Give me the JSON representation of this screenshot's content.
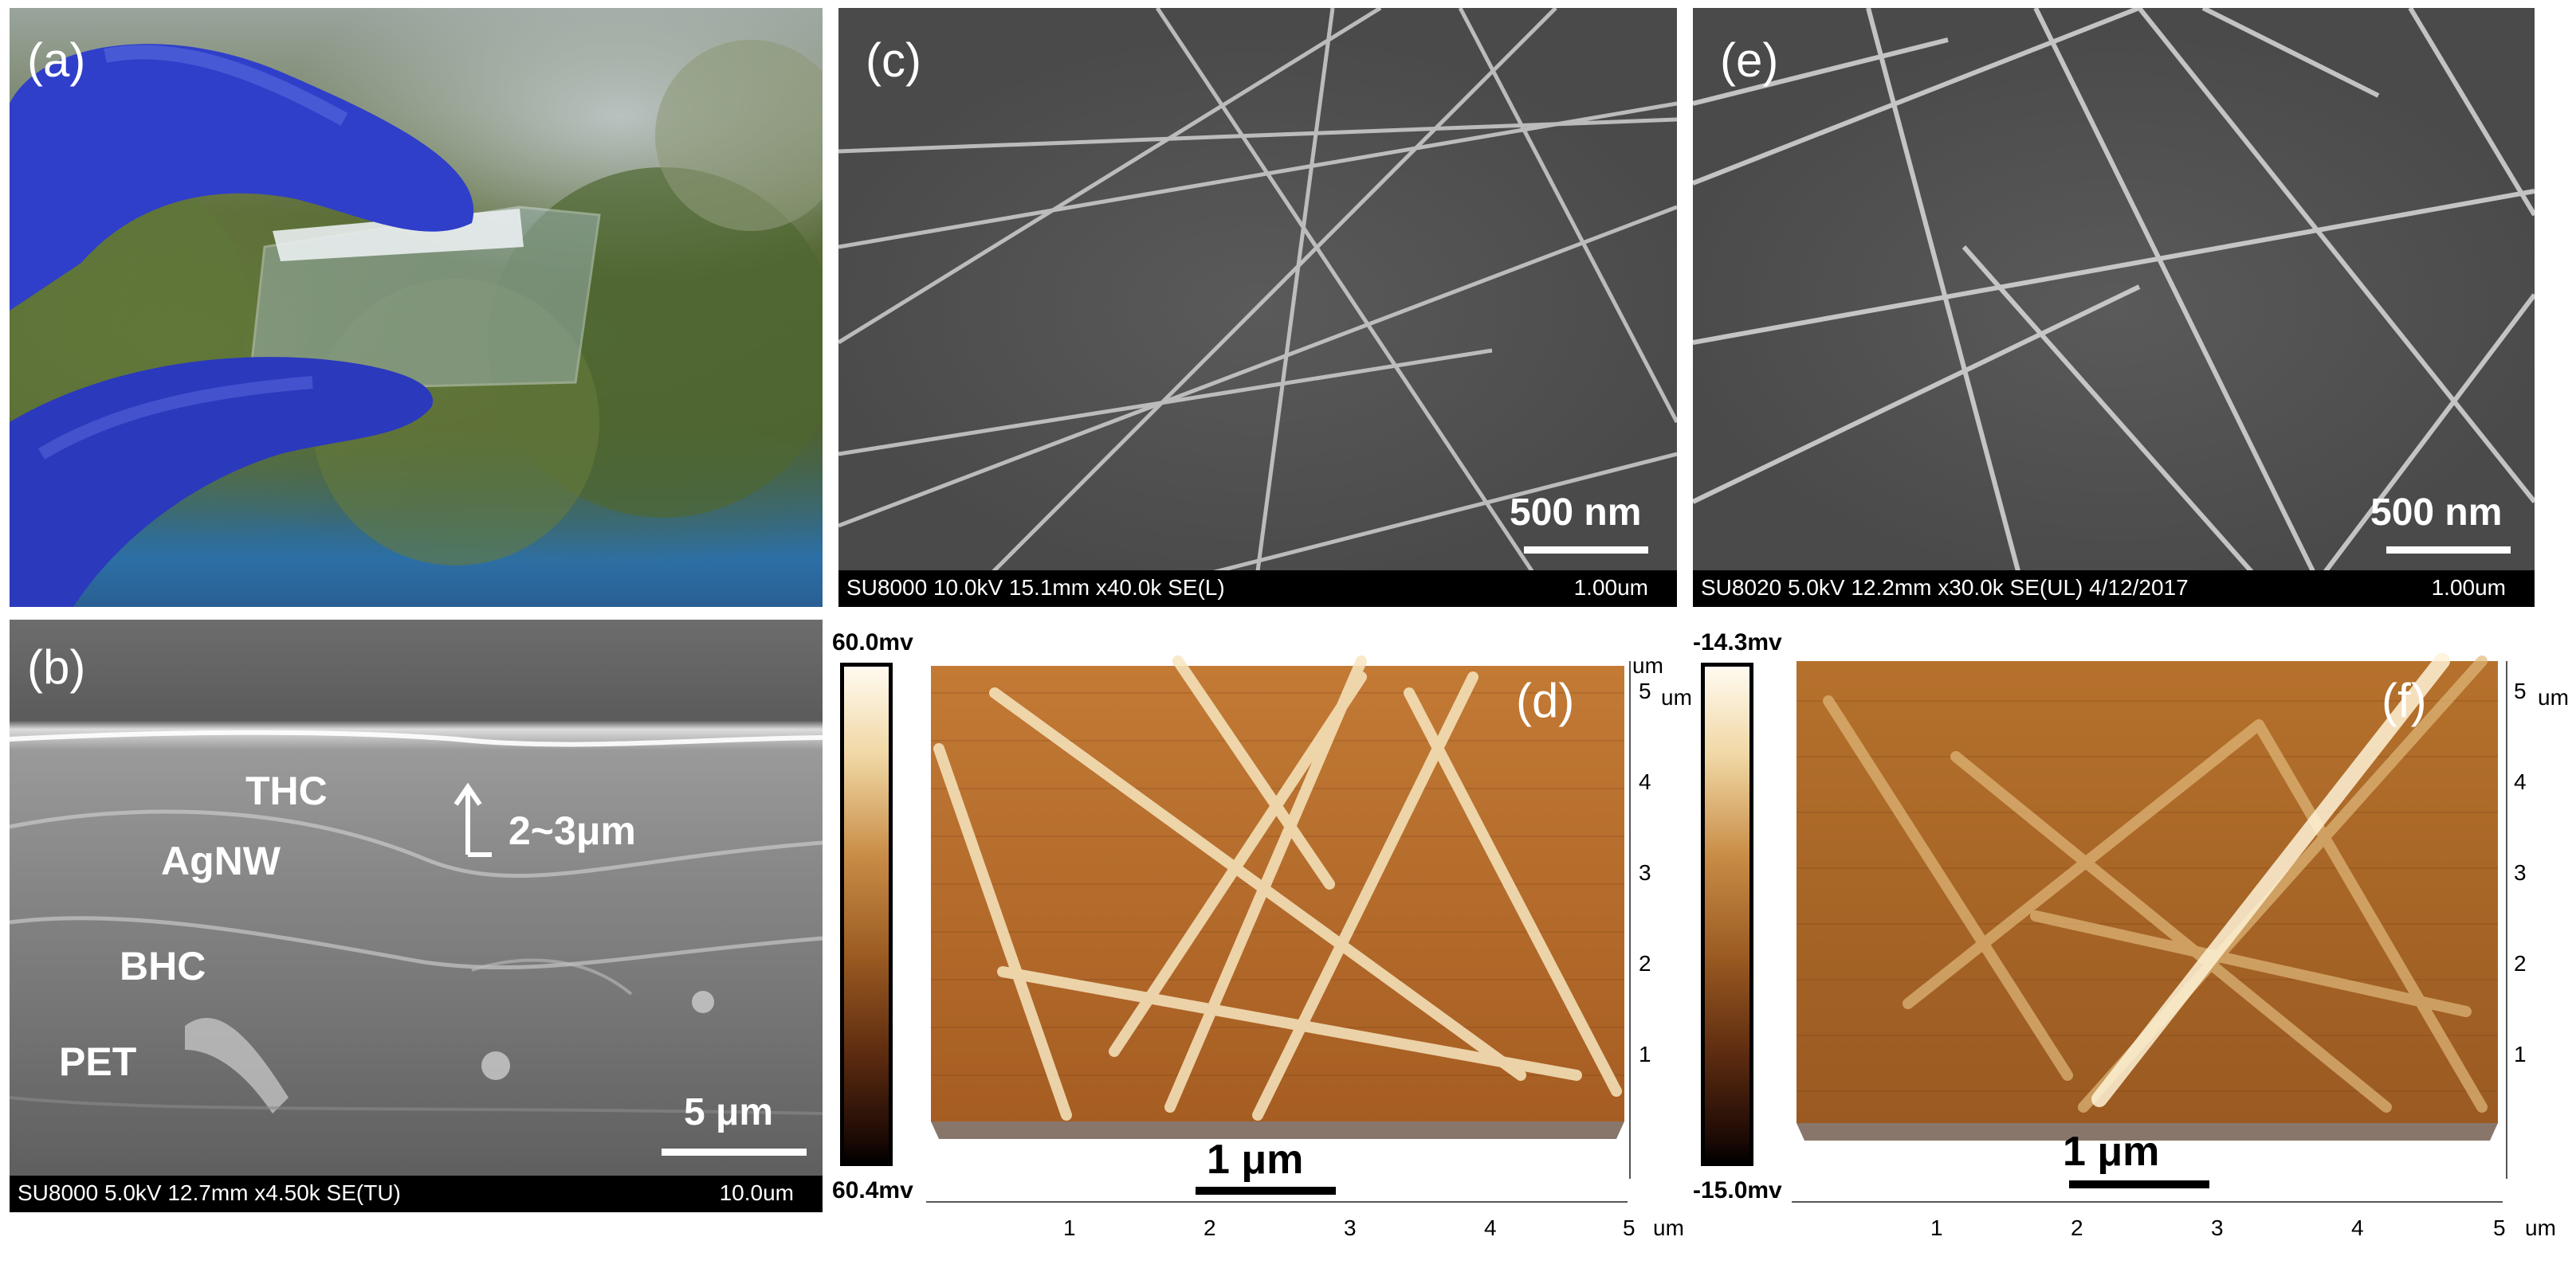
{
  "panels": {
    "a": {
      "label": "(a)"
    },
    "b": {
      "label": "(b)",
      "layers": [
        "THC",
        "AgNW",
        "BHC",
        "PET"
      ],
      "thickness": "2~3μm",
      "scale": "5 μm",
      "info": "SU8000 5.0kV 12.7mm x4.50k SE(TU)",
      "info_scale": "10.0um"
    },
    "c": {
      "label": "(c)",
      "scale": "500 nm",
      "info": "SU8000 10.0kV 15.1mm x40.0k SE(L)",
      "info_scale": "1.00um"
    },
    "e": {
      "label": "(e)",
      "scale": "500 nm",
      "info": "SU8020 5.0kV 12.2mm x30.0k SE(UL) 4/12/2017",
      "info_scale": "1.00um"
    },
    "d": {
      "label": "(d)",
      "cbar_top": "60.0mv",
      "cbar_bottom": "60.4mv",
      "scale": "1 μm",
      "x_ticks": [
        "1",
        "2",
        "3",
        "4",
        "5"
      ],
      "y_ticks": [
        "1",
        "2",
        "3",
        "4",
        "5"
      ],
      "unit": "um"
    },
    "f": {
      "label": "(f)",
      "cbar_top": "-14.3mv",
      "cbar_bottom": "-15.0mv",
      "scale": "1 μm",
      "x_ticks": [
        "1",
        "2",
        "3",
        "4",
        "5"
      ],
      "y_ticks": [
        "1",
        "2",
        "3",
        "4",
        "5"
      ],
      "unit": "um"
    }
  },
  "colors": {
    "afm_light": "#f5e2b4",
    "afm_mid": "#b5712c",
    "afm_dark": "#5a2a0c",
    "glove": "#2f3fc9"
  }
}
